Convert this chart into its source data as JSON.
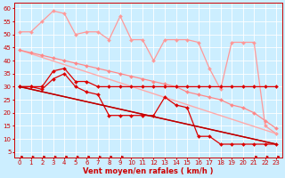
{
  "title": "",
  "xlabel": "Vent moyen/en rafales ( km/h )",
  "bg_color": "#cceeff",
  "grid_color": "#ffffff",
  "xlim": [
    -0.5,
    23.5
  ],
  "ylim": [
    3,
    62
  ],
  "yticks": [
    5,
    10,
    15,
    20,
    25,
    30,
    35,
    40,
    45,
    50,
    55,
    60
  ],
  "xticks": [
    0,
    1,
    2,
    3,
    4,
    5,
    6,
    7,
    8,
    9,
    10,
    11,
    12,
    13,
    14,
    15,
    16,
    17,
    18,
    19,
    20,
    21,
    22,
    23
  ],
  "xlabel_color": "#cc0000",
  "xlabel_fontsize": 6,
  "tick_fontsize": 5,
  "lines": [
    {
      "x": [
        0,
        1,
        2,
        3,
        4,
        5,
        6,
        7,
        8,
        9,
        10,
        11,
        12,
        13,
        14,
        15,
        16,
        17,
        18,
        19,
        20,
        21,
        22,
        23
      ],
      "y": [
        51,
        51,
        55,
        59,
        58,
        50,
        51,
        51,
        48,
        57,
        48,
        48,
        40,
        48,
        48,
        48,
        47,
        37,
        29,
        47,
        47,
        47,
        15,
        12
      ],
      "color": "#ff9999",
      "linewidth": 0.9,
      "marker": "D",
      "markersize": 2.0
    },
    {
      "x": [
        0,
        23
      ],
      "y": [
        44,
        12
      ],
      "color": "#ffaaaa",
      "linewidth": 1.0,
      "marker": null,
      "markersize": 0
    },
    {
      "x": [
        0,
        1,
        2,
        3,
        4,
        5,
        6,
        7,
        8,
        9,
        10,
        11,
        12,
        13,
        14,
        15,
        16,
        17,
        18,
        19,
        20,
        21,
        22,
        23
      ],
      "y": [
        44,
        43,
        42,
        41,
        40,
        39,
        38,
        37,
        36,
        35,
        34,
        33,
        32,
        31,
        30,
        28,
        27,
        26,
        25,
        23,
        22,
        20,
        17,
        14
      ],
      "color": "#ff8888",
      "linewidth": 0.9,
      "marker": "D",
      "markersize": 2.0
    },
    {
      "x": [
        0,
        1,
        2,
        3,
        4,
        5,
        6,
        7,
        8,
        9,
        10,
        11,
        12,
        13,
        14,
        15,
        16,
        17,
        18,
        19,
        20,
        21,
        22,
        23
      ],
      "y": [
        30,
        30,
        30,
        36,
        37,
        32,
        32,
        30,
        30,
        30,
        30,
        30,
        30,
        30,
        30,
        30,
        30,
        30,
        30,
        30,
        30,
        30,
        30,
        30
      ],
      "color": "#dd0000",
      "linewidth": 0.9,
      "marker": "D",
      "markersize": 2.0
    },
    {
      "x": [
        0,
        1,
        2,
        3,
        4,
        5,
        6,
        7,
        8,
        9,
        10,
        11,
        12,
        13,
        14,
        15,
        16,
        17,
        18,
        19,
        20,
        21,
        22,
        23
      ],
      "y": [
        30,
        30,
        29,
        33,
        35,
        30,
        28,
        27,
        19,
        19,
        19,
        19,
        19,
        26,
        23,
        22,
        11,
        11,
        8,
        8,
        8,
        8,
        8,
        8
      ],
      "color": "#dd0000",
      "linewidth": 0.9,
      "marker": "D",
      "markersize": 2.0
    },
    {
      "x": [
        0,
        23
      ],
      "y": [
        30,
        8
      ],
      "color": "#cc0000",
      "linewidth": 1.1,
      "marker": null,
      "markersize": 0
    },
    {
      "x": [
        0,
        23
      ],
      "y": [
        30,
        8
      ],
      "color": "#bb0000",
      "linewidth": 0.8,
      "marker": null,
      "markersize": 0
    }
  ],
  "arrows": {
    "y": 3.2,
    "color": "#cc0000",
    "right_indices": [
      0,
      1,
      2,
      3,
      4,
      5,
      6,
      7,
      8,
      9,
      21,
      22,
      23
    ],
    "down_right_indices": [
      10,
      11,
      12,
      13,
      14,
      15,
      16,
      17,
      18,
      19,
      20
    ]
  }
}
